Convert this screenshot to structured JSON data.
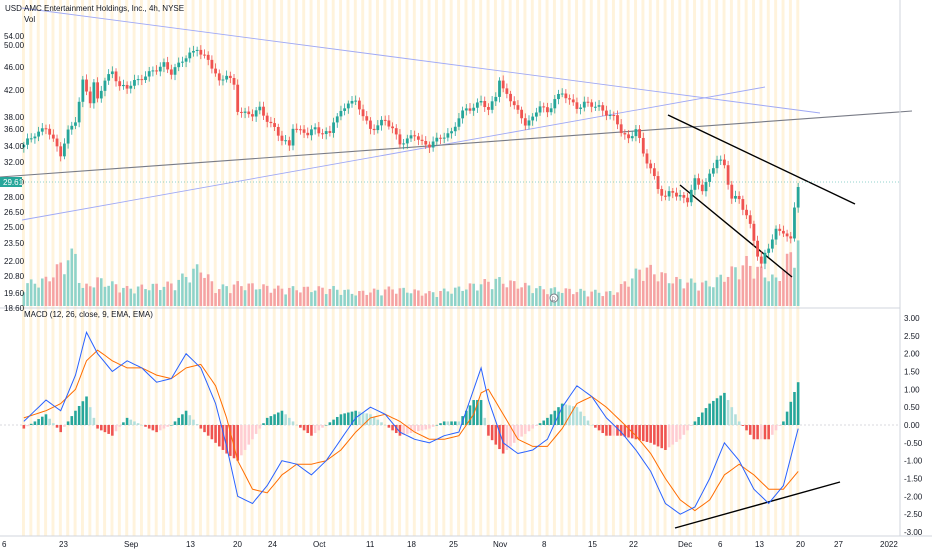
{
  "header": {
    "currency": "USD",
    "title": "AMC Entertainment Holdings, Inc., 4h, NYSE",
    "vol_label": "Vol",
    "macd_label": "MACD (12, 26, close, 9, EMA, EMA)"
  },
  "colors": {
    "up": "#26a69a",
    "down": "#ef5350",
    "up_vol": "#8fd3c9",
    "down_vol": "#f5a3a3",
    "hist_up_strong": "#26a69a",
    "hist_up_weak": "#b2dfdb",
    "hist_down_strong": "#ef5350",
    "hist_down_weak": "#ffcdd2",
    "macd_line": "#2962ff",
    "signal_line": "#ff6d00",
    "session_stripe": "#fff3dc",
    "trend_blue": "#9fa8f5",
    "trend_gray": "#787b86",
    "trend_black": "#000000",
    "price_badge": "#26a69a"
  },
  "last_price": "29.61",
  "icons": {
    "dividend_marker": "dividend-marker-icon"
  },
  "chart_data": [
    {
      "type": "candlestick",
      "title": "AMC Entertainment Holdings, Inc., 4h, NYSE",
      "y_axis_ticks": [
        "54.00",
        "50.00",
        "46.00",
        "42.00",
        "38.00",
        "36.00",
        "34.00",
        "32.00",
        "30.00",
        "28.00",
        "26.50",
        "25.00",
        "23.50",
        "22.00",
        "20.80",
        "19.60",
        "18.60"
      ],
      "y_scale": "log",
      "ylim": [
        18.6,
        56.0
      ],
      "x_axis_ticks": [
        "6",
        "23",
        "Sep",
        "13",
        "20",
        "24",
        "Oct",
        "11",
        "18",
        "25",
        "Nov",
        "8",
        "15",
        "22",
        "Dec",
        "6",
        "13",
        "20",
        "27",
        "2022"
      ],
      "close_path": [
        [
          0,
          34.8
        ],
        [
          3,
          36.8
        ],
        [
          6,
          37.5
        ],
        [
          8,
          35.5
        ],
        [
          10,
          34.0
        ],
        [
          12,
          37.0
        ],
        [
          14,
          38.5
        ],
        [
          15,
          41.5
        ],
        [
          16,
          45.5
        ],
        [
          17,
          44.0
        ],
        [
          18,
          42.0
        ],
        [
          19,
          45.0
        ],
        [
          20,
          42.0
        ],
        [
          22,
          45.5
        ],
        [
          24,
          47.5
        ],
        [
          26,
          44.5
        ],
        [
          28,
          44.0
        ],
        [
          30,
          45.5
        ],
        [
          33,
          46.5
        ],
        [
          36,
          47.5
        ],
        [
          38,
          49.0
        ],
        [
          40,
          47.0
        ],
        [
          42,
          48.5
        ],
        [
          45,
          51.0
        ],
        [
          47,
          52.0
        ],
        [
          48,
          50.5
        ],
        [
          50,
          49.5
        ],
        [
          52,
          47.0
        ],
        [
          53,
          45.5
        ],
        [
          55,
          46.5
        ],
        [
          57,
          44.5
        ],
        [
          58,
          40.5
        ],
        [
          60,
          40.0
        ],
        [
          62,
          39.5
        ],
        [
          64,
          40.5
        ],
        [
          66,
          39.0
        ],
        [
          68,
          37.5
        ],
        [
          70,
          35.5
        ],
        [
          72,
          35.0
        ],
        [
          73,
          38.0
        ],
        [
          75,
          37.0
        ],
        [
          77,
          36.5
        ],
        [
          79,
          37.5
        ],
        [
          81,
          37.0
        ],
        [
          83,
          36.5
        ],
        [
          84,
          38.5
        ],
        [
          86,
          40.0
        ],
        [
          88,
          42.0
        ],
        [
          90,
          41.5
        ],
        [
          92,
          39.5
        ],
        [
          94,
          37.5
        ],
        [
          96,
          38.0
        ],
        [
          98,
          38.5
        ],
        [
          100,
          37.5
        ],
        [
          102,
          35.5
        ],
        [
          104,
          35.5
        ],
        [
          106,
          36.5
        ],
        [
          108,
          35.5
        ],
        [
          110,
          35.0
        ],
        [
          112,
          35.5
        ],
        [
          114,
          36.5
        ],
        [
          116,
          37.0
        ],
        [
          118,
          39.0
        ],
        [
          120,
          40.5
        ],
        [
          122,
          41.0
        ],
        [
          124,
          42.0
        ],
        [
          126,
          40.0
        ],
        [
          128,
          43.0
        ],
        [
          129,
          46.0
        ],
        [
          130,
          44.0
        ],
        [
          132,
          42.0
        ],
        [
          134,
          40.0
        ],
        [
          136,
          38.5
        ],
        [
          138,
          39.0
        ],
        [
          140,
          41.0
        ],
        [
          142,
          40.0
        ],
        [
          144,
          42.5
        ],
        [
          146,
          43.0
        ],
        [
          148,
          42.0
        ],
        [
          150,
          41.0
        ],
        [
          152,
          41.5
        ],
        [
          154,
          41.0
        ],
        [
          156,
          41.0
        ],
        [
          158,
          40.0
        ],
        [
          160,
          39.0
        ],
        [
          162,
          37.0
        ],
        [
          164,
          36.0
        ],
        [
          166,
          37.5
        ],
        [
          168,
          33.5
        ],
        [
          170,
          32.0
        ],
        [
          172,
          29.5
        ],
        [
          174,
          28.0
        ],
        [
          176,
          29.0
        ],
        [
          178,
          28.5
        ],
        [
          180,
          28.0
        ],
        [
          182,
          30.0
        ],
        [
          184,
          29.5
        ],
        [
          186,
          31.0
        ],
        [
          188,
          33.0
        ],
        [
          190,
          32.0
        ],
        [
          192,
          28.5
        ],
        [
          194,
          28.0
        ],
        [
          196,
          26.0
        ],
        [
          198,
          24.0
        ],
        [
          200,
          21.5
        ],
        [
          202,
          23.0
        ],
        [
          204,
          24.5
        ],
        [
          206,
          25.0
        ],
        [
          208,
          23.5
        ],
        [
          209,
          27.0
        ],
        [
          210,
          29.6
        ]
      ],
      "volume_path": [
        [
          0,
          0.25
        ],
        [
          6,
          0.3
        ],
        [
          12,
          0.55
        ],
        [
          14,
          0.6
        ],
        [
          16,
          0.2
        ],
        [
          20,
          0.3
        ],
        [
          28,
          0.2
        ],
        [
          40,
          0.25
        ],
        [
          48,
          0.45
        ],
        [
          52,
          0.2
        ],
        [
          58,
          0.25
        ],
        [
          70,
          0.2
        ],
        [
          84,
          0.2
        ],
        [
          90,
          0.15
        ],
        [
          100,
          0.2
        ],
        [
          110,
          0.15
        ],
        [
          118,
          0.2
        ],
        [
          128,
          0.3
        ],
        [
          140,
          0.2
        ],
        [
          160,
          0.15
        ],
        [
          168,
          0.45
        ],
        [
          176,
          0.3
        ],
        [
          186,
          0.25
        ],
        [
          196,
          0.5
        ],
        [
          200,
          0.4
        ],
        [
          204,
          0.3
        ],
        [
          210,
          0.75
        ]
      ],
      "ticker_label": "29.61"
    },
    {
      "type": "line",
      "title": "MACD (12, 26, close, 9, EMA, EMA)",
      "y_axis_ticks": [
        "3.00",
        "2.50",
        "2.00",
        "1.50",
        "1.00",
        "0.50",
        "0.00",
        "-0.50",
        "-1.00",
        "-1.50",
        "-2.00",
        "-2.50",
        "-3.00"
      ],
      "ylim": [
        -3.0,
        3.0
      ],
      "series": [
        {
          "name": "MACD",
          "values_path": [
            [
              0,
              0.1
            ],
            [
              6,
              0.7
            ],
            [
              10,
              0.4
            ],
            [
              14,
              1.4
            ],
            [
              17,
              2.6
            ],
            [
              20,
              2.0
            ],
            [
              24,
              1.5
            ],
            [
              28,
              1.8
            ],
            [
              32,
              1.6
            ],
            [
              36,
              1.2
            ],
            [
              40,
              1.3
            ],
            [
              44,
              2.0
            ],
            [
              48,
              1.6
            ],
            [
              52,
              0.6
            ],
            [
              55,
              -0.6
            ],
            [
              58,
              -2.0
            ],
            [
              62,
              -2.2
            ],
            [
              66,
              -1.7
            ],
            [
              70,
              -1.0
            ],
            [
              74,
              -1.1
            ],
            [
              78,
              -1.4
            ],
            [
              82,
              -1.0
            ],
            [
              86,
              -0.4
            ],
            [
              90,
              0.2
            ],
            [
              94,
              0.5
            ],
            [
              98,
              0.3
            ],
            [
              102,
              -0.2
            ],
            [
              106,
              -0.4
            ],
            [
              110,
              -0.5
            ],
            [
              114,
              -0.3
            ],
            [
              118,
              -0.2
            ],
            [
              122,
              1.0
            ],
            [
              124,
              1.6
            ],
            [
              126,
              0.7
            ],
            [
              130,
              -0.5
            ],
            [
              134,
              -0.8
            ],
            [
              138,
              -0.7
            ],
            [
              142,
              -0.4
            ],
            [
              146,
              0.5
            ],
            [
              150,
              1.1
            ],
            [
              154,
              0.8
            ],
            [
              158,
              0.2
            ],
            [
              162,
              -0.2
            ],
            [
              166,
              -0.7
            ],
            [
              170,
              -1.3
            ],
            [
              174,
              -2.2
            ],
            [
              178,
              -2.5
            ],
            [
              182,
              -2.3
            ],
            [
              186,
              -1.5
            ],
            [
              190,
              -0.5
            ],
            [
              194,
              -1.0
            ],
            [
              198,
              -1.8
            ],
            [
              202,
              -2.2
            ],
            [
              206,
              -1.7
            ],
            [
              210,
              -0.1
            ]
          ]
        },
        {
          "name": "Signal",
          "values_path": [
            [
              0,
              0.2
            ],
            [
              6,
              0.4
            ],
            [
              10,
              0.6
            ],
            [
              14,
              1.0
            ],
            [
              17,
              1.8
            ],
            [
              20,
              2.1
            ],
            [
              24,
              1.8
            ],
            [
              28,
              1.6
            ],
            [
              32,
              1.6
            ],
            [
              36,
              1.4
            ],
            [
              40,
              1.3
            ],
            [
              44,
              1.6
            ],
            [
              48,
              1.7
            ],
            [
              52,
              1.1
            ],
            [
              55,
              0.2
            ],
            [
              58,
              -1.0
            ],
            [
              62,
              -1.8
            ],
            [
              66,
              -1.9
            ],
            [
              70,
              -1.4
            ],
            [
              74,
              -1.1
            ],
            [
              78,
              -1.1
            ],
            [
              82,
              -1.0
            ],
            [
              86,
              -0.7
            ],
            [
              90,
              -0.2
            ],
            [
              94,
              0.2
            ],
            [
              98,
              0.3
            ],
            [
              102,
              0.1
            ],
            [
              106,
              -0.2
            ],
            [
              110,
              -0.4
            ],
            [
              114,
              -0.4
            ],
            [
              118,
              -0.3
            ],
            [
              122,
              0.3
            ],
            [
              124,
              0.9
            ],
            [
              126,
              1.0
            ],
            [
              130,
              0.3
            ],
            [
              134,
              -0.4
            ],
            [
              138,
              -0.6
            ],
            [
              142,
              -0.6
            ],
            [
              146,
              -0.1
            ],
            [
              150,
              0.6
            ],
            [
              154,
              0.8
            ],
            [
              158,
              0.5
            ],
            [
              162,
              0.1
            ],
            [
              166,
              -0.3
            ],
            [
              170,
              -0.8
            ],
            [
              174,
              -1.5
            ],
            [
              178,
              -2.1
            ],
            [
              182,
              -2.4
            ],
            [
              186,
              -2.1
            ],
            [
              190,
              -1.4
            ],
            [
              194,
              -1.1
            ],
            [
              198,
              -1.4
            ],
            [
              202,
              -1.8
            ],
            [
              206,
              -1.8
            ],
            [
              210,
              -1.3
            ]
          ]
        }
      ]
    }
  ]
}
